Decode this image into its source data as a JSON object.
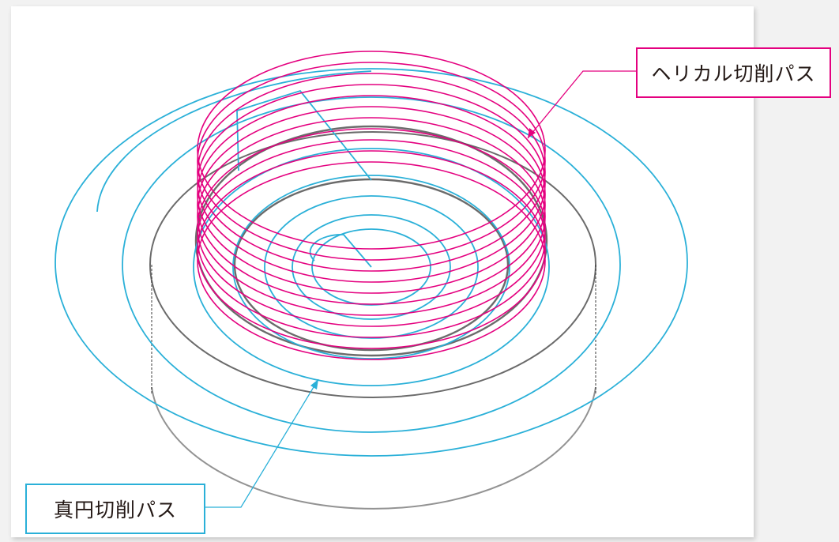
{
  "labels": {
    "helical_path": "ヘリカル切削パス",
    "circle_path": "真円切削パス"
  },
  "colors": {
    "helical": "#e4007f",
    "circle": "#2ab0d8",
    "part_outline": "#3a3a3a",
    "background": "#ffffff"
  }
}
